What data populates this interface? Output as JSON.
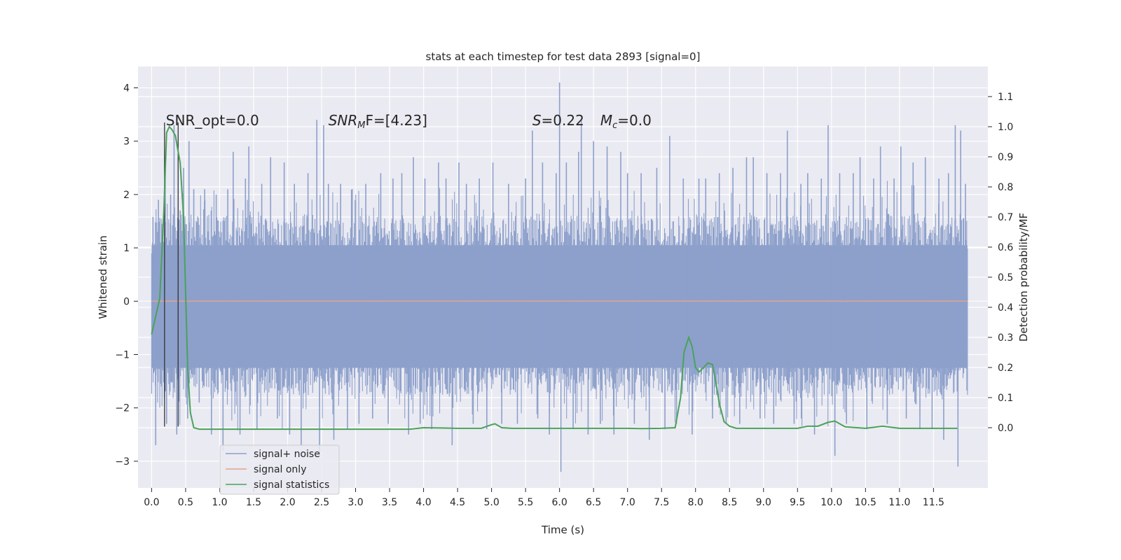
{
  "chart_data": {
    "type": "line",
    "title": "stats at each timestep for test data 2893 [signal=0]",
    "xlabel": "Time (s)",
    "ylabel": "Whitened strain",
    "ylabel_right": "Detection probability/MF",
    "xlim": [
      -0.2,
      12.3
    ],
    "ylim": [
      -3.5,
      4.4
    ],
    "ylim_right": [
      -0.2,
      1.2
    ],
    "x_ticks": [
      0.0,
      0.5,
      1.0,
      1.5,
      2.0,
      2.5,
      3.0,
      3.5,
      4.0,
      4.5,
      5.0,
      5.5,
      6.0,
      6.5,
      7.0,
      7.5,
      8.0,
      8.5,
      9.0,
      9.5,
      10.0,
      10.5,
      11.0,
      11.5
    ],
    "x_tick_labels": [
      "0.0",
      "0.5",
      "1.0",
      "1.5",
      "2.0",
      "2.5",
      "3.0",
      "3.5",
      "4.0",
      "4.5",
      "5.0",
      "5.5",
      "6.0",
      "6.5",
      "7.0",
      "7.5",
      "8.0",
      "8.5",
      "9.0",
      "9.5",
      "10.0",
      "10.5",
      "11.0",
      "11.5"
    ],
    "y_ticks": [
      -3,
      -2,
      -1,
      0,
      1,
      2,
      3,
      4
    ],
    "y_tick_labels": [
      "−3",
      "−2",
      "−1",
      "0",
      "1",
      "2",
      "3",
      "4"
    ],
    "y_ticks_right": [
      0.0,
      0.1,
      0.2,
      0.3,
      0.4,
      0.5,
      0.6,
      0.7,
      0.8,
      0.9,
      1.0,
      1.1
    ],
    "y_tick_labels_right": [
      "0.0",
      "0.1",
      "0.2",
      "0.3",
      "0.4",
      "0.5",
      "0.6",
      "0.7",
      "0.8",
      "0.9",
      "1.0",
      "1.1"
    ],
    "grid": true,
    "legend_position": "lower-left",
    "annotations": {
      "snr_opt": "SNR_opt=0.0",
      "snr_mf_base": "SNR",
      "snr_mf_sub": "M",
      "snr_mf_rest": "F=[4.23]",
      "s_base": "S",
      "s_rest": "=0.22",
      "mc_base": "M",
      "mc_sub": "c",
      "mc_rest": "=0.0"
    },
    "series": [
      {
        "name": "signal+ noise",
        "color": "#8da0cb",
        "axis": "left",
        "noise_duration": 12.0,
        "noise_band_core": 1.6,
        "spikes": [
          [
            0.02,
            1.58
          ],
          [
            0.06,
            -2.7
          ],
          [
            0.1,
            1.9
          ],
          [
            0.15,
            1.45
          ],
          [
            0.2,
            2.4
          ],
          [
            0.22,
            -2.3
          ],
          [
            0.28,
            2.0
          ],
          [
            0.33,
            3.3
          ],
          [
            0.37,
            -2.5
          ],
          [
            0.42,
            1.7
          ],
          [
            0.47,
            2.5
          ],
          [
            0.53,
            -2.2
          ],
          [
            0.55,
            3.0
          ],
          [
            0.62,
            2.1
          ],
          [
            0.7,
            -1.9
          ],
          [
            0.78,
            2.1
          ],
          [
            0.88,
            -2.5
          ],
          [
            0.95,
            2.0
          ],
          [
            1.05,
            -2.8
          ],
          [
            1.12,
            2.1
          ],
          [
            1.2,
            2.8
          ],
          [
            1.3,
            -2.5
          ],
          [
            1.38,
            2.3
          ],
          [
            1.43,
            2.9
          ],
          [
            1.55,
            -2.4
          ],
          [
            1.62,
            2.2
          ],
          [
            1.75,
            2.7
          ],
          [
            1.85,
            -2.2
          ],
          [
            1.95,
            2.6
          ],
          [
            2.03,
            -2.5
          ],
          [
            2.1,
            2.2
          ],
          [
            2.2,
            -2.7
          ],
          [
            2.3,
            2.4
          ],
          [
            2.43,
            3.4
          ],
          [
            2.47,
            -2.9
          ],
          [
            2.53,
            3.3
          ],
          [
            2.6,
            2.2
          ],
          [
            2.68,
            -2.6
          ],
          [
            2.78,
            2.2
          ],
          [
            2.88,
            -2.4
          ],
          [
            2.95,
            2.1
          ],
          [
            3.05,
            -2.3
          ],
          [
            3.15,
            2.2
          ],
          [
            3.25,
            -2.2
          ],
          [
            3.37,
            2.4
          ],
          [
            3.48,
            -2.3
          ],
          [
            3.55,
            2.3
          ],
          [
            3.68,
            2.4
          ],
          [
            3.78,
            -2.5
          ],
          [
            3.85,
            2.7
          ],
          [
            3.95,
            -2.3
          ],
          [
            4.02,
            2.3
          ],
          [
            4.12,
            -2.4
          ],
          [
            4.22,
            2.6
          ],
          [
            4.33,
            2.3
          ],
          [
            4.42,
            -2.7
          ],
          [
            4.52,
            2.6
          ],
          [
            4.63,
            2.2
          ],
          [
            4.73,
            -2.3
          ],
          [
            4.82,
            2.3
          ],
          [
            4.93,
            -2.4
          ],
          [
            5.02,
            2.6
          ],
          [
            5.15,
            -2.3
          ],
          [
            5.25,
            2.2
          ],
          [
            5.38,
            -2.3
          ],
          [
            5.5,
            2.3
          ],
          [
            5.6,
            3.2
          ],
          [
            5.68,
            -2.2
          ],
          [
            5.75,
            2.6
          ],
          [
            5.85,
            -2.5
          ],
          [
            5.95,
            2.4
          ],
          [
            6.0,
            4.1
          ],
          [
            6.02,
            -3.2
          ],
          [
            6.1,
            2.6
          ],
          [
            6.2,
            -2.4
          ],
          [
            6.28,
            2.8
          ],
          [
            6.32,
            3.4
          ],
          [
            6.42,
            -2.5
          ],
          [
            6.5,
            3.0
          ],
          [
            6.6,
            -2.3
          ],
          [
            6.7,
            2.9
          ],
          [
            6.8,
            -2.5
          ],
          [
            6.9,
            2.8
          ],
          [
            7.0,
            2.4
          ],
          [
            7.1,
            -2.3
          ],
          [
            7.2,
            2.4
          ],
          [
            7.32,
            -2.6
          ],
          [
            7.43,
            2.5
          ],
          [
            7.55,
            -2.4
          ],
          [
            7.62,
            3.1
          ],
          [
            7.72,
            -2.3
          ],
          [
            7.82,
            2.3
          ],
          [
            7.95,
            -2.5
          ],
          [
            8.05,
            2.3
          ],
          [
            8.15,
            2.3
          ],
          [
            8.25,
            -2.2
          ],
          [
            8.35,
            2.4
          ],
          [
            8.45,
            -2.3
          ],
          [
            8.55,
            2.5
          ],
          [
            8.65,
            -2.3
          ],
          [
            8.75,
            2.7
          ],
          [
            8.85,
            2.7
          ],
          [
            8.95,
            -2.2
          ],
          [
            9.05,
            2.4
          ],
          [
            9.15,
            -2.3
          ],
          [
            9.25,
            2.4
          ],
          [
            9.35,
            3.2
          ],
          [
            9.45,
            -2.3
          ],
          [
            9.55,
            2.2
          ],
          [
            9.65,
            2.4
          ],
          [
            9.75,
            -2.5
          ],
          [
            9.85,
            2.3
          ],
          [
            9.95,
            3.3
          ],
          [
            10.05,
            -2.9
          ],
          [
            10.12,
            2.4
          ],
          [
            10.22,
            -2.3
          ],
          [
            10.32,
            2.4
          ],
          [
            10.42,
            2.7
          ],
          [
            10.52,
            -2.4
          ],
          [
            10.62,
            2.3
          ],
          [
            10.72,
            2.9
          ],
          [
            10.82,
            -2.3
          ],
          [
            10.92,
            2.3
          ],
          [
            11.02,
            2.9
          ],
          [
            11.1,
            -2.2
          ],
          [
            11.2,
            2.6
          ],
          [
            11.3,
            -2.4
          ],
          [
            11.38,
            2.7
          ],
          [
            11.48,
            -2.4
          ],
          [
            11.58,
            2.3
          ],
          [
            11.65,
            -2.6
          ],
          [
            11.72,
            2.4
          ],
          [
            11.82,
            3.3
          ],
          [
            11.86,
            -3.1
          ],
          [
            11.9,
            3.2
          ],
          [
            11.97,
            2.2
          ]
        ]
      },
      {
        "name": "signal only",
        "color": "#e1a48d",
        "axis": "left",
        "x": [
          0.0,
          12.0
        ],
        "y": [
          0.0,
          0.0
        ]
      },
      {
        "name": "signal statistics",
        "color": "#4aa25a",
        "axis": "right",
        "x": [
          0.0,
          0.05,
          0.12,
          0.18,
          0.22,
          0.26,
          0.3,
          0.35,
          0.38,
          0.42,
          0.47,
          0.5,
          0.53,
          0.57,
          0.62,
          0.7,
          0.8,
          1.0,
          2.0,
          3.0,
          3.8,
          4.0,
          4.5,
          4.85,
          5.0,
          5.05,
          5.15,
          5.3,
          6.0,
          6.5,
          7.0,
          7.2,
          7.5,
          7.7,
          7.78,
          7.83,
          7.9,
          7.95,
          8.0,
          8.05,
          8.12,
          8.18,
          8.25,
          8.3,
          8.35,
          8.42,
          8.5,
          8.6,
          8.8,
          9.0,
          9.5,
          9.65,
          9.8,
          9.95,
          10.05,
          10.2,
          10.5,
          10.75,
          11.0,
          11.5,
          11.85
        ],
        "y": [
          0.31,
          0.36,
          0.43,
          0.72,
          0.98,
          1.0,
          0.99,
          0.97,
          0.93,
          0.88,
          0.7,
          0.45,
          0.2,
          0.05,
          0.0,
          -0.005,
          -0.005,
          -0.005,
          -0.005,
          -0.005,
          -0.005,
          0.0,
          -0.002,
          -0.002,
          0.01,
          0.013,
          0.0,
          -0.002,
          -0.002,
          -0.002,
          -0.002,
          -0.003,
          -0.002,
          0.0,
          0.1,
          0.25,
          0.3,
          0.27,
          0.2,
          0.185,
          0.2,
          0.215,
          0.21,
          0.15,
          0.08,
          0.02,
          0.005,
          -0.002,
          -0.002,
          -0.002,
          -0.002,
          0.005,
          0.005,
          0.018,
          0.022,
          0.003,
          -0.002,
          0.005,
          -0.002,
          -0.002,
          -0.002
        ]
      }
    ],
    "marker_lines": [
      {
        "x": 0.19,
        "y_range": [
          -2.35,
          3.35
        ]
      },
      {
        "x": 0.39,
        "y_range": [
          -2.35,
          3.35
        ]
      }
    ]
  }
}
